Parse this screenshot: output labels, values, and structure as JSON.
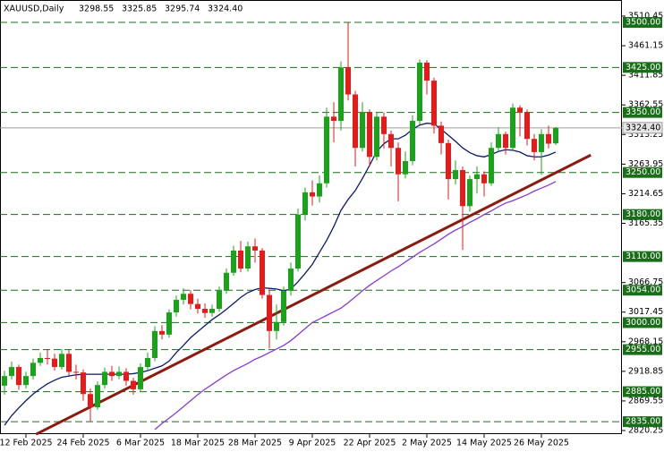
{
  "chart_data": {
    "type": "candlestick",
    "title": "XAUUSD,Daily",
    "ohlc_labels": [
      "3298.55",
      "3325.85",
      "3295.74",
      "3324.40"
    ],
    "categories": [
      null,
      null,
      null,
      "12 Feb 2025",
      null,
      null,
      null,
      null,
      null,
      null,
      null,
      "24 Feb 2025",
      null,
      null,
      null,
      null,
      null,
      null,
      null,
      "6 Mar 2025",
      null,
      null,
      null,
      null,
      null,
      null,
      null,
      "18 Mar 2025",
      null,
      null,
      null,
      null,
      null,
      null,
      null,
      "28 Mar 2025",
      null,
      null,
      null,
      null,
      null,
      null,
      null,
      "9 Apr 2025",
      null,
      null,
      null,
      null,
      null,
      null,
      null,
      "22 Apr 2025",
      null,
      null,
      null,
      null,
      null,
      null,
      null,
      "2 May 2025",
      null,
      null,
      null,
      null,
      null,
      null,
      null,
      "14 May 2025",
      null,
      null,
      null,
      null,
      null,
      null,
      null,
      "26 May 2025",
      null,
      null
    ],
    "open": [
      2895,
      2911,
      2926,
      2896,
      2911,
      2933,
      2941,
      2940,
      2926,
      2948,
      2918,
      2917,
      2881,
      2859,
      2896,
      2918,
      2911,
      2918,
      2903,
      2889,
      2926,
      2941,
      2986,
      2980,
      3017,
      3038,
      3048,
      3031,
      3023,
      3016,
      3023,
      3053,
      3083,
      3120,
      3090,
      3127,
      3120,
      3046,
      2986,
      3001,
      3053,
      3090,
      3180,
      3217,
      3210,
      3232,
      3343,
      3336,
      3425,
      3380,
      3291,
      3351,
      3276,
      3343,
      3314,
      3291,
      3247,
      3269,
      3336,
      3433,
      3403,
      3328,
      3299,
      3239,
      3254,
      3194,
      3239,
      3247,
      3232,
      3291,
      3314,
      3291,
      3358,
      3351,
      3306,
      3284,
      3314,
      3298.55
    ],
    "high": [
      2920,
      2935,
      2930,
      2918,
      2940,
      2950,
      2956,
      2948,
      2956,
      2955,
      2930,
      2922,
      2890,
      2902,
      2925,
      2928,
      2927,
      2924,
      2908,
      2932,
      2950,
      2994,
      2996,
      3022,
      3045,
      3057,
      3054,
      3040,
      3032,
      3030,
      3060,
      3090,
      3128,
      3136,
      3135,
      3140,
      3124,
      3055,
      3030,
      3060,
      3100,
      3190,
      3225,
      3237,
      3245,
      3358,
      3367,
      3435,
      3500,
      3386,
      3367,
      3355,
      3350,
      3350,
      3320,
      3300,
      3285,
      3345,
      3438,
      3437,
      3408,
      3335,
      3305,
      3270,
      3260,
      3245,
      3260,
      3252,
      3300,
      3325,
      3318,
      3365,
      3362,
      3355,
      3314,
      3322,
      3328,
      3325.85
    ],
    "low": [
      2880,
      2905,
      2888,
      2890,
      2905,
      2928,
      2930,
      2920,
      2922,
      2912,
      2905,
      2870,
      2836,
      2855,
      2890,
      2903,
      2906,
      2895,
      2880,
      2885,
      2920,
      2936,
      2972,
      2975,
      3010,
      3030,
      3022,
      3015,
      3008,
      3010,
      3018,
      3048,
      3078,
      3084,
      3085,
      3100,
      3040,
      2957,
      2972,
      2995,
      3045,
      3085,
      3170,
      3195,
      3200,
      3225,
      3300,
      3320,
      3370,
      3260,
      3285,
      3260,
      3270,
      3290,
      3260,
      3202,
      3240,
      3262,
      3330,
      3380,
      3315,
      3280,
      3205,
      3230,
      3121,
      3185,
      3215,
      3210,
      3228,
      3285,
      3280,
      3286,
      3310,
      3295,
      3270,
      3246,
      3290,
      3295.74
    ],
    "close": [
      2911,
      2926,
      2896,
      2911,
      2933,
      2941,
      2940,
      2926,
      2948,
      2918,
      2917,
      2881,
      2859,
      2896,
      2918,
      2911,
      2918,
      2903,
      2889,
      2926,
      2941,
      2986,
      2980,
      3017,
      3038,
      3048,
      3031,
      3023,
      3016,
      3023,
      3053,
      3083,
      3120,
      3090,
      3127,
      3120,
      3046,
      2986,
      3001,
      3053,
      3090,
      3180,
      3217,
      3210,
      3232,
      3343,
      3336,
      3425,
      3380,
      3291,
      3351,
      3276,
      3343,
      3314,
      3291,
      3247,
      3269,
      3336,
      3433,
      3403,
      3328,
      3299,
      3239,
      3254,
      3194,
      3239,
      3247,
      3232,
      3291,
      3314,
      3291,
      3358,
      3351,
      3306,
      3284,
      3314,
      3298,
      3324.4
    ],
    "up_color": "#1aa31a",
    "down_color": "#e31b1b",
    "overlays": [
      {
        "color": "#0a1a6e",
        "values": [
          2829,
          2845,
          2858,
          2870,
          2881,
          2890,
          2898,
          2904,
          2909,
          2911,
          2913,
          2914,
          2914,
          2914,
          2914,
          2914,
          2914,
          2914,
          2915,
          2917,
          2920,
          2924,
          2928,
          2936,
          2950,
          2962,
          2975,
          2985,
          2995,
          3005,
          3013,
          3022,
          3032,
          3042,
          3050,
          3055,
          3058,
          3057,
          3056,
          3053,
          3056,
          3068,
          3082,
          3097,
          3117,
          3137,
          3160,
          3187,
          3205,
          3220,
          3240,
          3262,
          3285,
          3298,
          3306,
          3306,
          3312,
          3322,
          3329,
          3332,
          3331,
          3322,
          3312,
          3302,
          3291,
          3283,
          3278,
          3276,
          3280,
          3285,
          3288,
          3287,
          3284,
          3278,
          3276,
          3276,
          3279,
          3284
        ]
      },
      {
        "color": "#8a3ad6",
        "values": [
          null,
          null,
          null,
          null,
          null,
          null,
          null,
          null,
          null,
          null,
          null,
          null,
          null,
          null,
          null,
          null,
          null,
          null,
          null,
          null,
          null,
          2822,
          2832,
          2841,
          2850,
          2860,
          2870,
          2880,
          2889,
          2897,
          2905,
          2913,
          2920,
          2926,
          2932,
          2939,
          2944,
          2950,
          2956,
          2962,
          2970,
          2980,
          2990,
          3000,
          3006,
          3012,
          3018,
          3024,
          3033,
          3043,
          3053,
          3062,
          3070,
          3078,
          3086,
          3093,
          3101,
          3109,
          3117,
          3124,
          3131,
          3139,
          3147,
          3154,
          3160,
          3167,
          3173,
          3180,
          3186,
          3193,
          3199,
          3203,
          3208,
          3213,
          3219,
          3224,
          3229,
          3235
        ]
      }
    ],
    "trendline": {
      "color": "#8b1a10",
      "x": [
        4.4,
        81.9
      ],
      "values": [
        2814,
        3279
      ]
    },
    "levels": [
      {
        "value": 3500,
        "label": "3500.00"
      },
      {
        "value": 3425,
        "label": "3425.00"
      },
      {
        "value": 3350,
        "label": "3350.00"
      },
      {
        "value": 3250,
        "label": "3250.00"
      },
      {
        "value": 3180,
        "label": "3180.00"
      },
      {
        "value": 3110,
        "label": "3110.00"
      },
      {
        "value": 3054,
        "label": "3054.00"
      },
      {
        "value": 3000,
        "label": "3000.00"
      },
      {
        "value": 2955,
        "label": "2955.00"
      },
      {
        "value": 2885,
        "label": "2885.00"
      },
      {
        "value": 2835,
        "label": "2835.00"
      }
    ],
    "level_color": "#1a6e1a",
    "ylim": [
      2814.3,
      3537.3
    ],
    "yticks": [
      3510.45,
      3461.15,
      3411.85,
      3362.55,
      3313.25,
      3263.95,
      3214.65,
      3165.35,
      3066.75,
      3017.45,
      2968.15,
      2918.85,
      2869.55,
      2820.25
    ]
  }
}
